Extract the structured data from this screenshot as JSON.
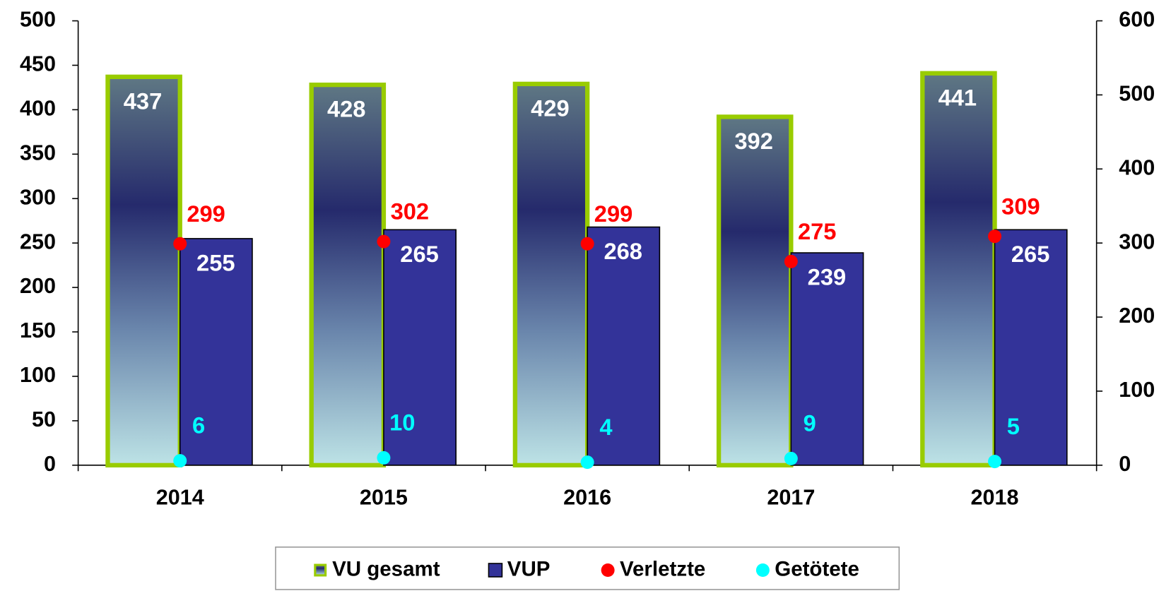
{
  "chart_data": {
    "type": "bar",
    "categories": [
      "2014",
      "2015",
      "2016",
      "2017",
      "2018"
    ],
    "series": [
      {
        "name": "VU gesamt",
        "type": "bar",
        "color": "#99cc00",
        "values": [
          437,
          428,
          429,
          392,
          441
        ]
      },
      {
        "name": "VUP",
        "type": "bar",
        "color": "#333399",
        "values": [
          255,
          265,
          268,
          239,
          265
        ]
      },
      {
        "name": "Verletzte",
        "type": "scatter",
        "axis": "y2",
        "color": "#ff0000",
        "values": [
          299,
          302,
          299,
          275,
          309
        ]
      },
      {
        "name": "Getötete",
        "type": "scatter",
        "axis": "y2",
        "color": "#00ffff",
        "values": [
          6,
          10,
          4,
          9,
          5
        ]
      }
    ],
    "ylim": [
      0,
      500
    ],
    "yticks": [
      0,
      50,
      100,
      150,
      200,
      250,
      300,
      350,
      400,
      450,
      500
    ],
    "y2lim": [
      0,
      600
    ],
    "y2ticks": [
      0,
      100,
      200,
      300,
      400,
      500,
      600
    ],
    "grid": false,
    "legend": "bottom"
  }
}
